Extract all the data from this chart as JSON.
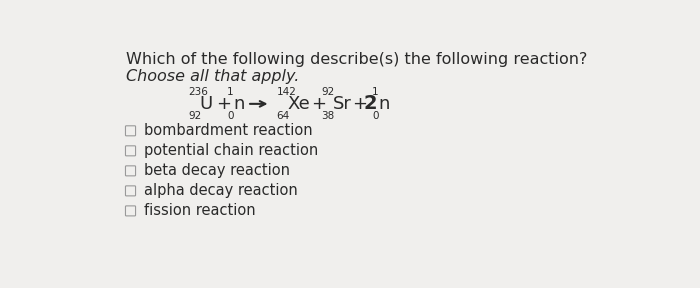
{
  "background_color": "#f0efed",
  "title_line1": "Which of the following describe(s) the following reaction?",
  "title_line2": "Choose all that apply.",
  "equation": {
    "U_mass": "236",
    "U_atomic": "92",
    "U_symbol": "U",
    "n1_mass": "1",
    "n1_atomic": "0",
    "n1_symbol": "n",
    "Xe_mass": "142",
    "Xe_atomic": "64",
    "Xe_symbol": "Xe",
    "Sr_mass": "92",
    "Sr_atomic": "38",
    "Sr_symbol": "Sr",
    "n2_coeff": "2",
    "n2_mass": "1",
    "n2_atomic": "0",
    "n2_symbol": "n"
  },
  "options": [
    "bombardment reaction",
    "potential chain reaction",
    "beta decay reaction",
    "alpha decay reaction",
    "fission reaction"
  ],
  "text_color": "#2a2a2a",
  "checkbox_color": "#999999",
  "title1_fontsize": 11.5,
  "title2_fontsize": 11.5,
  "eq_fontsize": 13,
  "eq_super_fontsize": 7.5,
  "opt_fontsize": 10.5
}
